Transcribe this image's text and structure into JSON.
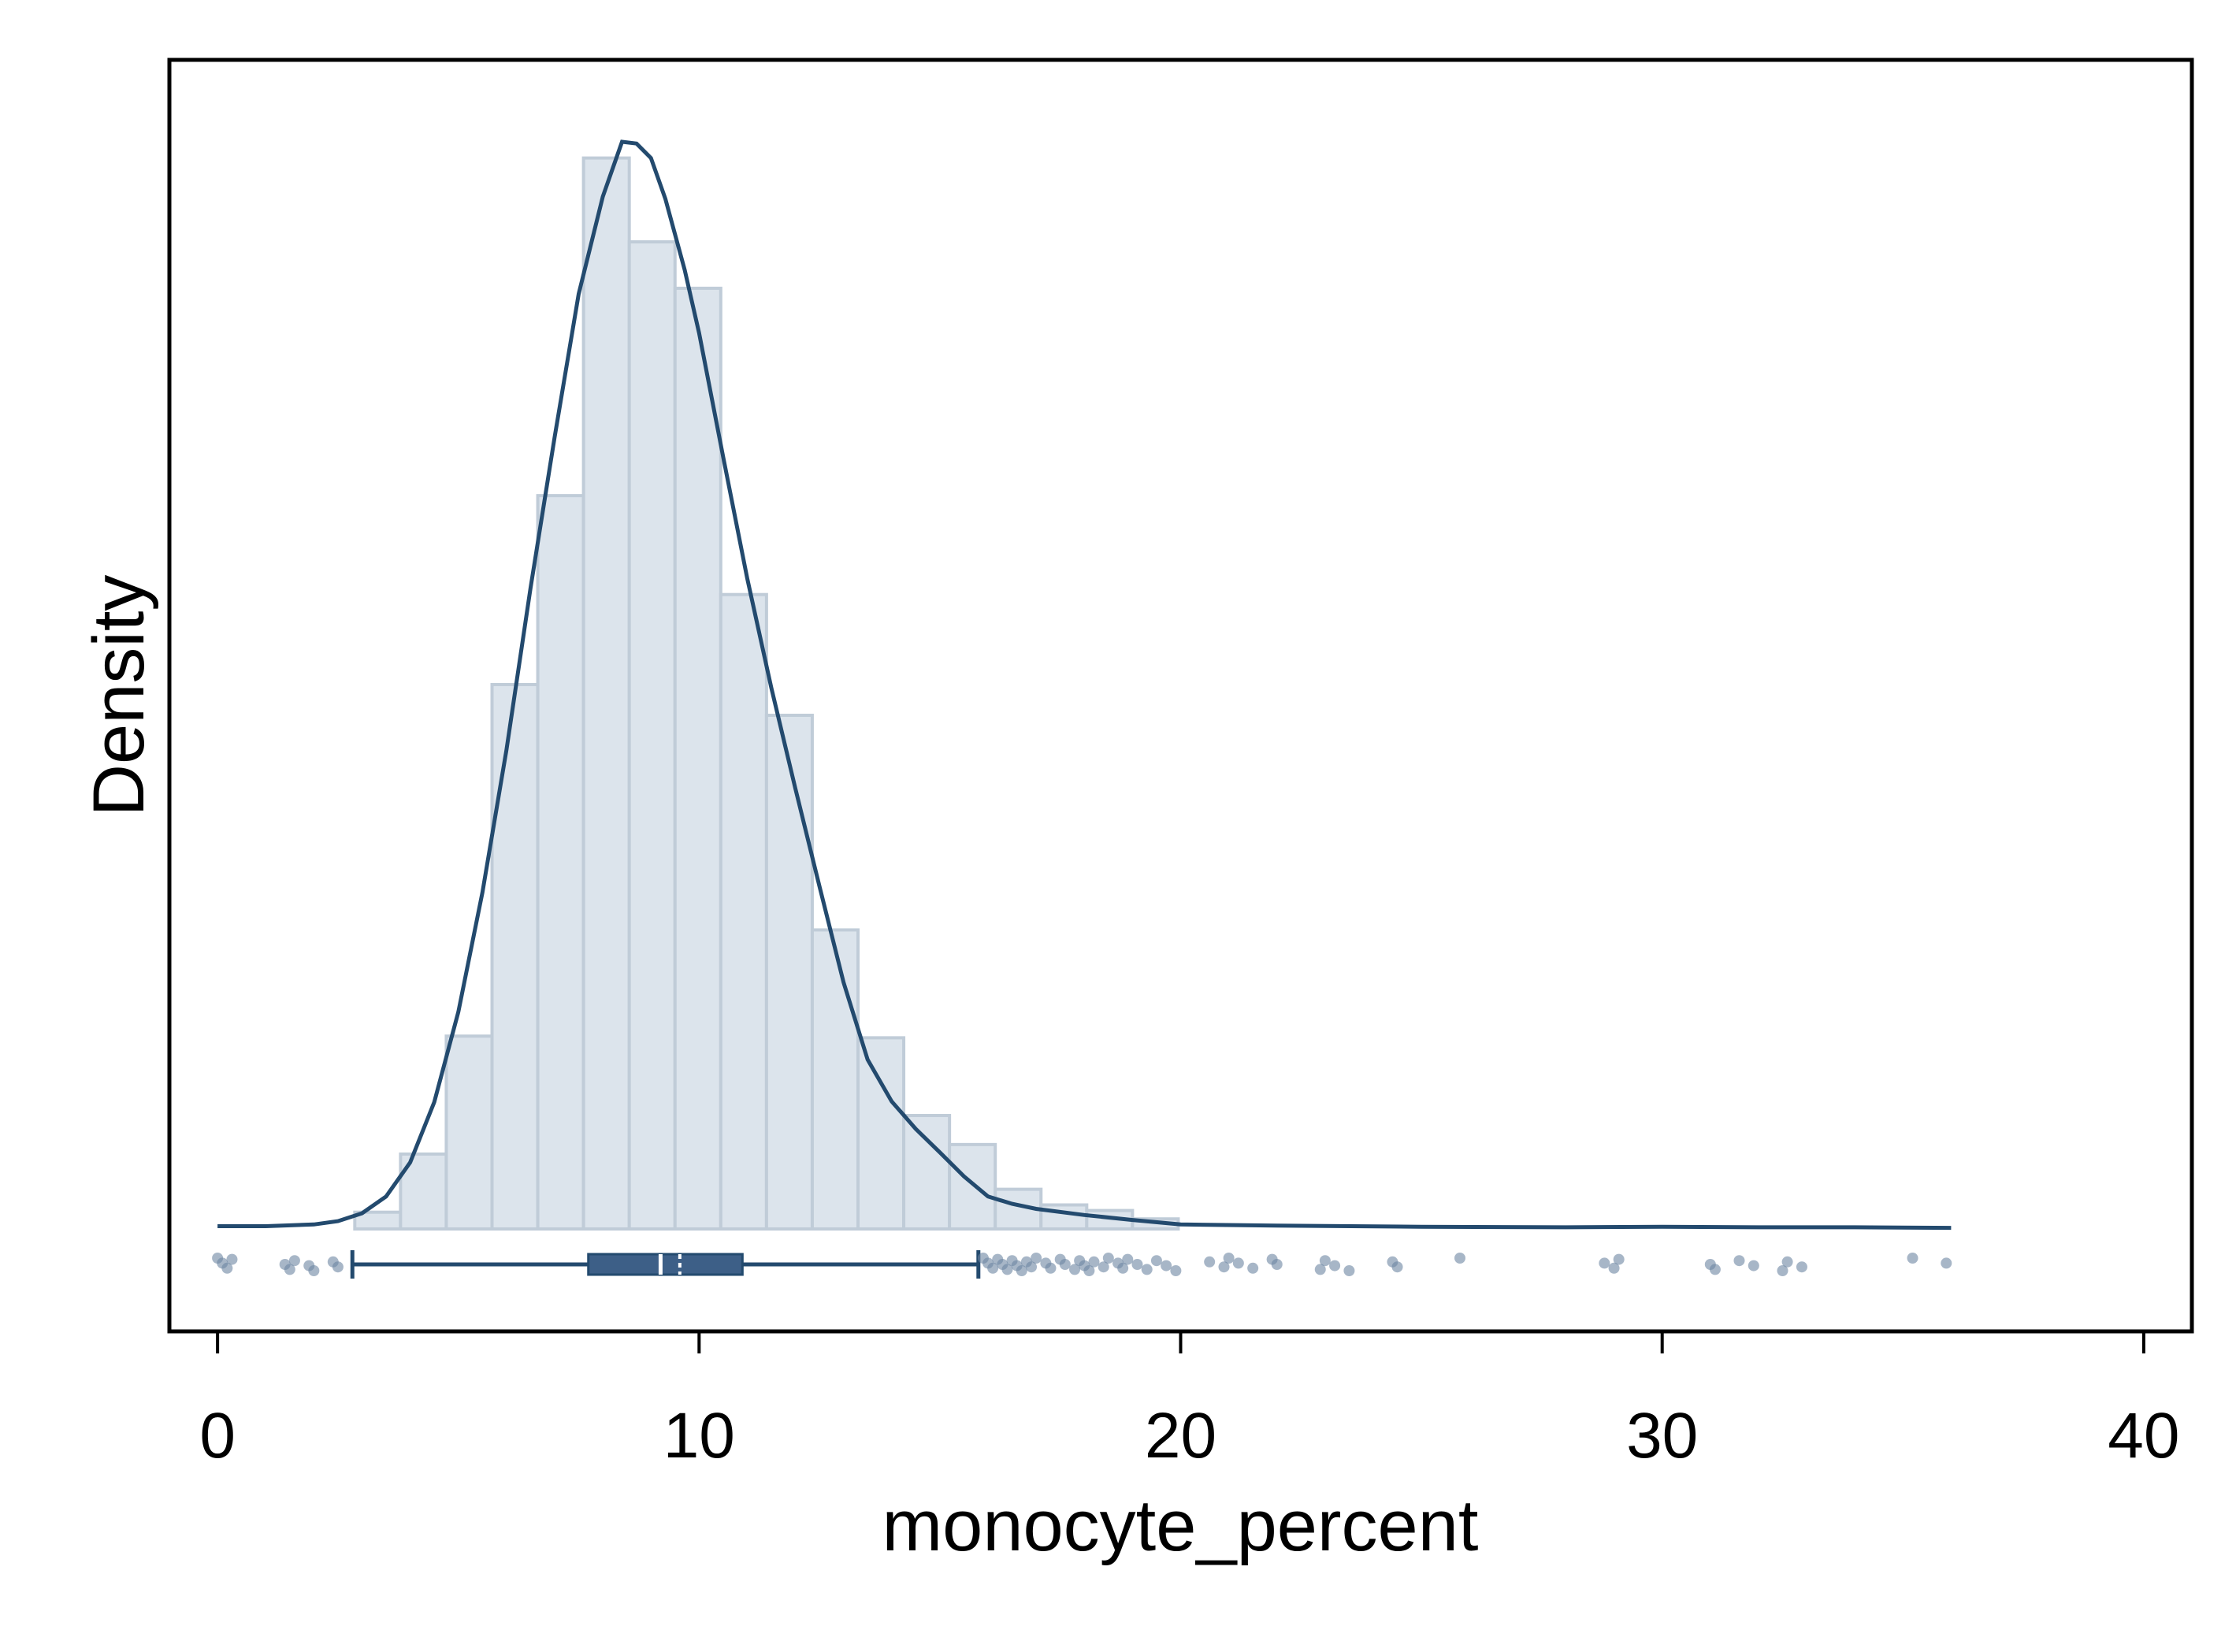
{
  "chart_data": {
    "type": "bar",
    "title": "",
    "xlabel": "monocyte_percent",
    "ylabel": "Density",
    "xlim": [
      -1,
      41
    ],
    "ylim": [
      0,
      0.2
    ],
    "x_ticks": [
      "0",
      "10",
      "20",
      "30",
      "40"
    ],
    "x_tick_values": [
      0,
      10,
      20,
      30,
      40
    ],
    "grid": false,
    "colors": {
      "bar_fill": "#dce4ec",
      "bar_edge": "#c0ccd8",
      "line": "#234a6e",
      "box": "#3d5f87",
      "points": "#6d86a2"
    },
    "histogram": {
      "bin_width": 0.95,
      "bins": [
        {
          "x0": 2.85,
          "x1": 3.8,
          "density": 0.003
        },
        {
          "x0": 3.8,
          "x1": 4.75,
          "density": 0.0134
        },
        {
          "x0": 4.75,
          "x1": 5.7,
          "density": 0.0345
        },
        {
          "x0": 5.7,
          "x1": 6.65,
          "density": 0.0974
        },
        {
          "x0": 6.65,
          "x1": 7.6,
          "density": 0.1312
        },
        {
          "x0": 7.6,
          "x1": 8.55,
          "density": 0.1916
        },
        {
          "x0": 8.55,
          "x1": 9.5,
          "density": 0.1766
        },
        {
          "x0": 9.5,
          "x1": 10.45,
          "density": 0.1683
        },
        {
          "x0": 10.45,
          "x1": 11.4,
          "density": 0.1135
        },
        {
          "x0": 11.4,
          "x1": 12.35,
          "density": 0.0919
        },
        {
          "x0": 12.35,
          "x1": 13.3,
          "density": 0.0535
        },
        {
          "x0": 13.3,
          "x1": 14.25,
          "density": 0.0342
        },
        {
          "x0": 14.25,
          "x1": 15.2,
          "density": 0.0203
        },
        {
          "x0": 15.2,
          "x1": 16.15,
          "density": 0.0151
        },
        {
          "x0": 16.15,
          "x1": 17.1,
          "density": 0.0071
        },
        {
          "x0": 17.1,
          "x1": 18.05,
          "density": 0.0043
        },
        {
          "x0": 18.05,
          "x1": 19.0,
          "density": 0.0033
        },
        {
          "x0": 19.0,
          "x1": 19.95,
          "density": 0.0018
        }
      ]
    },
    "density_curve": {
      "x": [
        0,
        1,
        2,
        2.5,
        3,
        3.5,
        4,
        4.5,
        5,
        5.5,
        6,
        6.5,
        7,
        7.5,
        8,
        8.4,
        8.7,
        9.0,
        9.3,
        9.7,
        10,
        10.5,
        11,
        11.5,
        12,
        12.5,
        13,
        13.5,
        14,
        14.5,
        15,
        15.5,
        16,
        16.5,
        17,
        18,
        19,
        20,
        22,
        25,
        28,
        30,
        32,
        34,
        36
      ],
      "y": [
        0.0005,
        0.0005,
        0.0008,
        0.0014,
        0.0028,
        0.0058,
        0.0119,
        0.0227,
        0.0388,
        0.0602,
        0.0857,
        0.1147,
        0.1417,
        0.1673,
        0.1847,
        0.1945,
        0.1942,
        0.1916,
        0.1843,
        0.1716,
        0.1603,
        0.1381,
        0.1164,
        0.0968,
        0.0788,
        0.0613,
        0.0441,
        0.0303,
        0.0228,
        0.0179,
        0.0137,
        0.0094,
        0.0058,
        0.0045,
        0.0036,
        0.0025,
        0.0016,
        0.0008,
        0.0006,
        0.0004,
        0.0003,
        0.0004,
        0.0003,
        0.0003,
        0.0002
      ]
    },
    "boxplot": {
      "whisker_low": 2.8,
      "q1": 7.7,
      "median": 9.2,
      "mean": 9.6,
      "q3": 10.9,
      "whisker_high": 15.8
    },
    "outliers": [
      0.0,
      0.1,
      0.2,
      0.3,
      1.4,
      1.5,
      1.6,
      1.9,
      2.0,
      2.4,
      2.5,
      15.9,
      16.0,
      16.1,
      16.2,
      16.3,
      16.4,
      16.5,
      16.6,
      16.7,
      16.8,
      16.9,
      17.0,
      17.2,
      17.3,
      17.5,
      17.6,
      17.8,
      17.9,
      18.0,
      18.1,
      18.2,
      18.4,
      18.5,
      18.7,
      18.8,
      18.9,
      19.1,
      19.3,
      19.5,
      19.7,
      19.9,
      20.6,
      20.9,
      21.0,
      21.2,
      21.5,
      21.9,
      22.0,
      22.9,
      23.0,
      23.2,
      23.5,
      24.4,
      24.5,
      25.8,
      28.8,
      29.0,
      29.1,
      31.0,
      31.1,
      31.6,
      31.9,
      32.5,
      32.6,
      32.9,
      35.2,
      35.9
    ]
  }
}
